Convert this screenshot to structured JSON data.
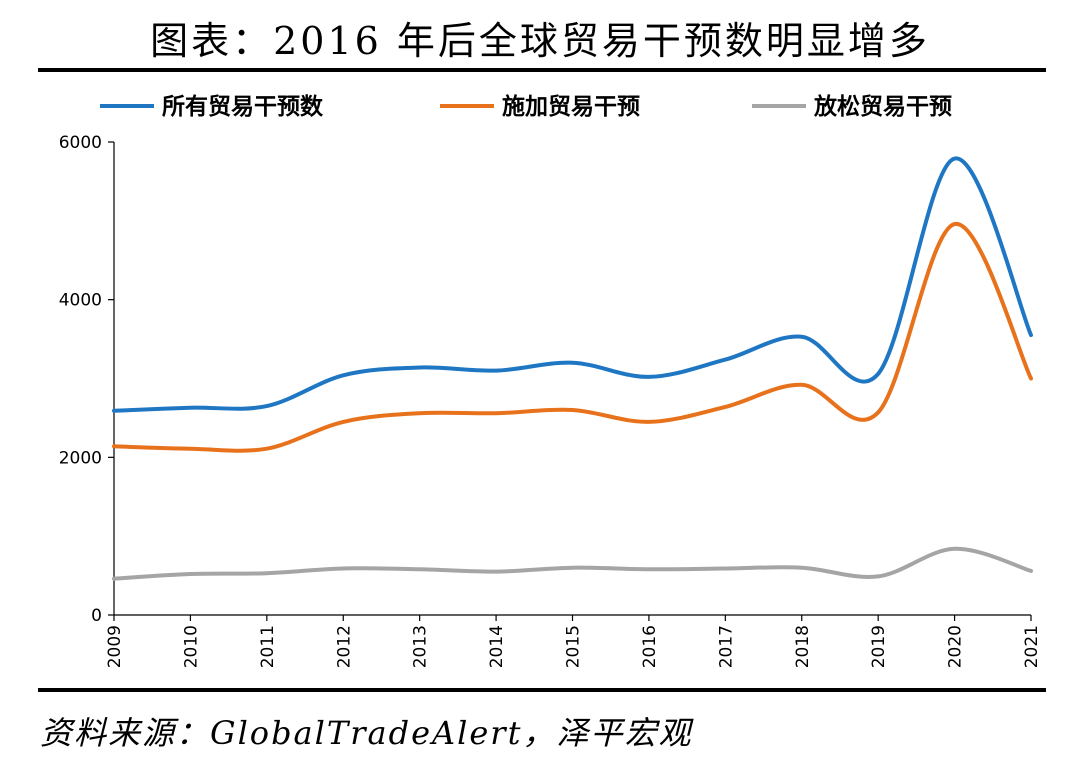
{
  "header": {
    "title": "图表：2016 年后全球贸易干预数明显增多"
  },
  "footer": {
    "source": "资料来源：GlobalTradeAlert，泽平宏观"
  },
  "chart_data": {
    "type": "line",
    "title": "图表：2016 年后全球贸易干预数明显增多",
    "xlabel": "",
    "ylabel": "",
    "x": [
      "2009",
      "2010",
      "2011",
      "2012",
      "2013",
      "2014",
      "2015",
      "2016",
      "2017",
      "2018",
      "2019",
      "2020",
      "2021"
    ],
    "ylim": [
      0,
      6000
    ],
    "yticks": [
      0,
      2000,
      4000,
      6000
    ],
    "yticks_labels": [
      "0",
      "2000",
      "4000",
      "6000"
    ],
    "grid": false,
    "legend_position": "top",
    "series": [
      {
        "name": "所有贸易干预数",
        "color": "#1F77C4",
        "values": [
          2590,
          2630,
          2650,
          3040,
          3140,
          3100,
          3200,
          3020,
          3240,
          3530,
          3060,
          5790,
          3550
        ]
      },
      {
        "name": "施加贸易干预",
        "color": "#E8721C",
        "values": [
          2140,
          2110,
          2110,
          2450,
          2560,
          2560,
          2600,
          2450,
          2640,
          2920,
          2570,
          4960,
          3000
        ]
      },
      {
        "name": "放松贸易干预",
        "color": "#A5A5A5",
        "values": [
          460,
          520,
          530,
          590,
          580,
          550,
          600,
          580,
          590,
          600,
          490,
          840,
          560
        ]
      }
    ]
  }
}
